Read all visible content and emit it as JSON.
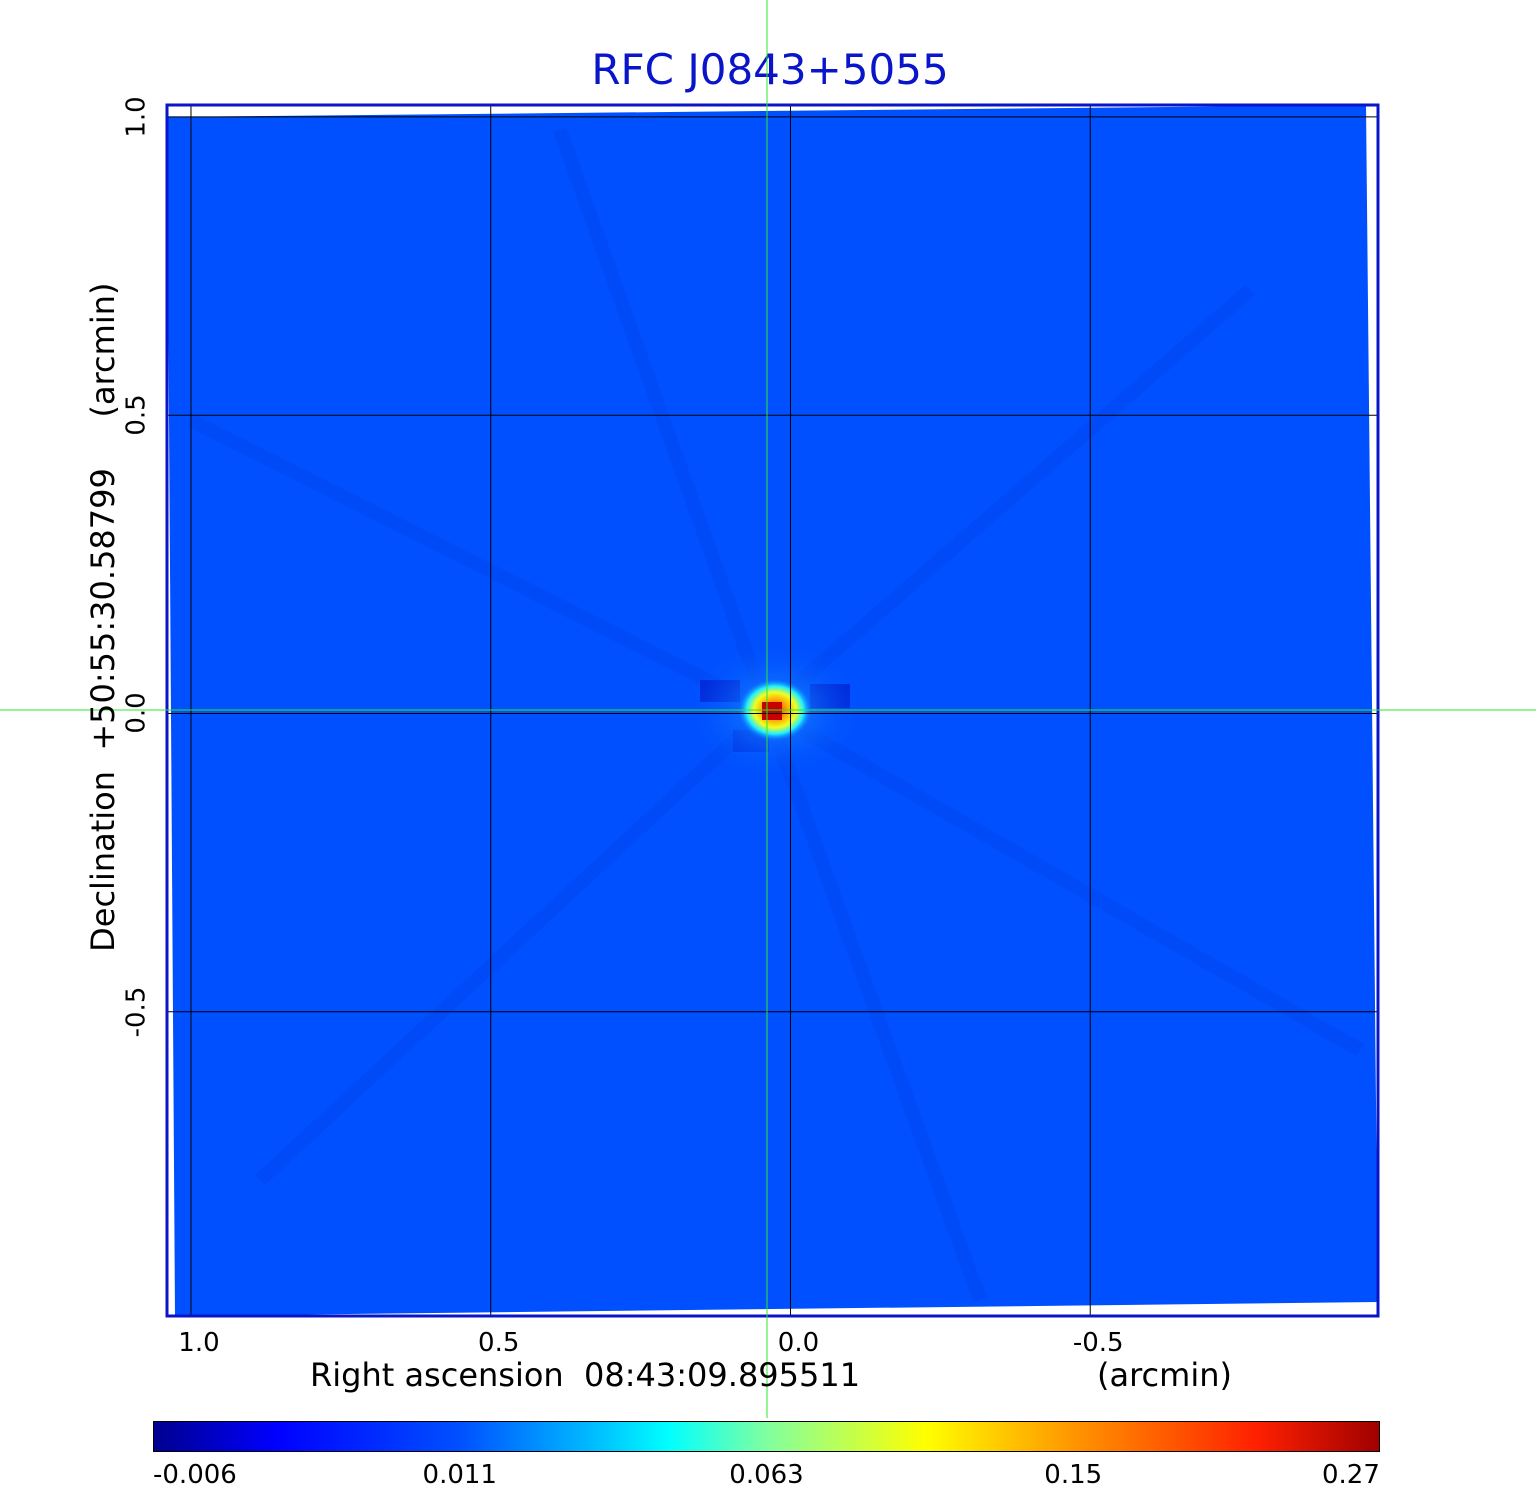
{
  "title": "RFC J0843+5055",
  "x_axis": {
    "label": "Right ascension  08:43:09.895511",
    "unit": "(arcmin)",
    "ticks": [
      "1.0",
      "0.5",
      "0.0",
      "-0.5"
    ],
    "tick_values": [
      1.0,
      0.5,
      0.0,
      -0.5
    ],
    "range": [
      1.04,
      -0.98
    ]
  },
  "y_axis": {
    "label": "Declination  +50:55:30.58799",
    "unit": "(arcmin)",
    "ticks": [
      "1.0",
      "0.5",
      "0.0",
      "-0.5"
    ],
    "tick_values": [
      1.0,
      0.5,
      0.0,
      -0.5
    ],
    "range": [
      -1.01,
      1.02
    ]
  },
  "source_peak": {
    "x": 0.0,
    "y": 0.0
  },
  "colorbar": {
    "ticks": [
      "-0.006",
      "0.011",
      "0.063",
      "0.15",
      "0.27"
    ],
    "colormap": "jet"
  },
  "colors": {
    "background_map": "#0050ff",
    "frame": "#0a14c8",
    "grid": "#000000",
    "crosshair": "#2ee82e",
    "title": "#0a14c8"
  }
}
